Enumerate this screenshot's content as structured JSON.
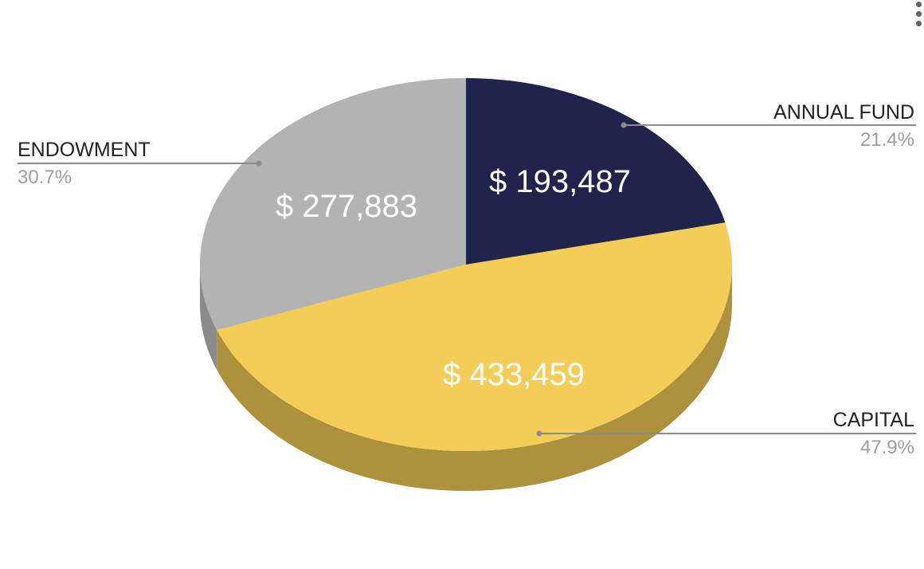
{
  "chart_data": {
    "type": "pie",
    "style": "3d",
    "slices": [
      {
        "label": "ANNUAL FUND",
        "value": 193487,
        "value_label": "$ 193,487",
        "percent_label": "21.4%",
        "color": "#20244d",
        "side_color": "#14173a"
      },
      {
        "label": "CAPITAL",
        "value": 433459,
        "value_label": "$ 433,459",
        "percent_label": "47.9%",
        "color": "#f3cd57",
        "side_color": "#ad913c"
      },
      {
        "label": "ENDOWMENT",
        "value": 277883,
        "value_label": "$ 277,883",
        "percent_label": "30.7%",
        "color": "#b3b3b3",
        "side_color": "#8a8a8a"
      }
    ],
    "legend": "none",
    "leader_line_color": "#8c8c8c"
  }
}
